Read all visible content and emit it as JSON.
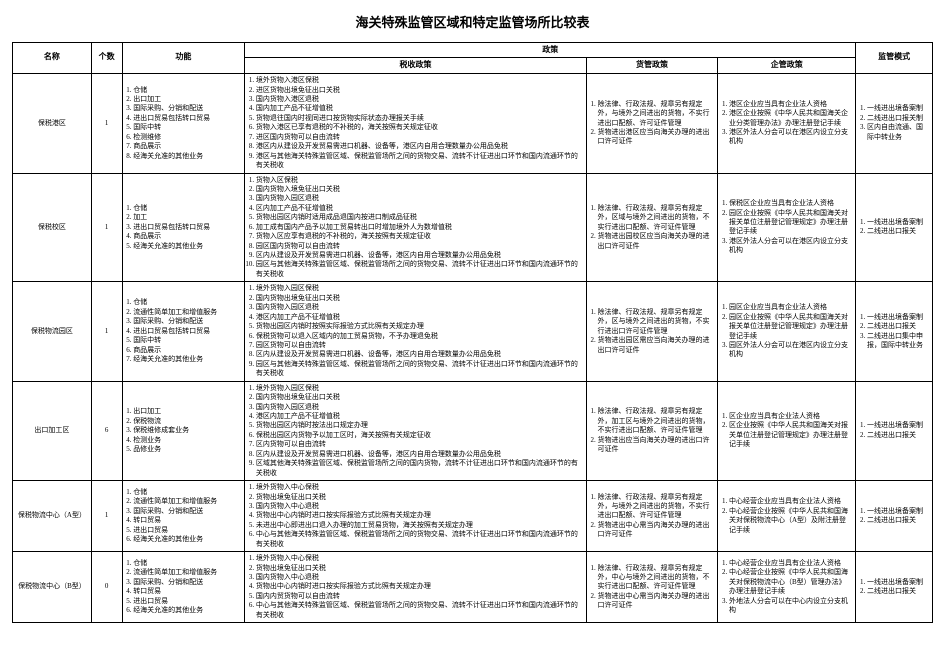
{
  "title": "海关特殊监管区域和特定监管场所比较表",
  "header": {
    "name": "名称",
    "count": "个数",
    "function": "功能",
    "policy": "政策",
    "tax": "税收政策",
    "cargo": "货管政策",
    "corp": "企管政策",
    "mode": "监管模式"
  },
  "rows": [
    {
      "name": "保税港区",
      "count": "1",
      "function": [
        "仓储",
        "出口加工",
        "国际采购、分销和配送",
        "进出口贸易包括转口贸易",
        "国际中转",
        "检测维修",
        "商品展示",
        "经海关允准的其他业务"
      ],
      "tax": [
        "境外货物入港区保税",
        "进区货物出境免征出口关税",
        "国内货物入港区退税",
        "国内加工产品不征增值税",
        "货物退往国内时视同进口按货物实际状态办理报关手续",
        "货物入港区已享有退税的不补税的，海关按照有关规定征收",
        "进区国内货物可以自由流转",
        "港区内从建设及开发贸易需进口机器、设备等，港区内自用合理数量办公用品免税",
        "港区与其他海关特殊监管区域、保税监管场所之间的货物交易、流转不计征进出口环节和国内流通环节的有关税收"
      ],
      "cargo": [
        "除法律、行政法规、规章另有规定外，与境外之间进出的货物，不实行进出口配额、许可证件管理",
        "货物进出港区应当向海关办理的进出口许可证件"
      ],
      "corp": [
        "港区企业应当具有企业法人资格",
        "港区企业按照《中华人民共和国海关企业分类管理办法》办理注册登记手续",
        "港区外法人分会可以在港区内设立分支机构"
      ],
      "mode": [
        "一线进出境备案制",
        "二线进出口报关制",
        "区内自由流通、国际中转业务"
      ]
    },
    {
      "name": "保税校区",
      "count": "1",
      "function": [
        "仓储",
        "加工",
        "进出口贸易包括转口贸易",
        "商品展示",
        "经海关允准的其他业务"
      ],
      "tax": [
        "货物入区保税",
        "国内货物入境免征出口关税",
        "国内货物入园区退税",
        "区内加工产品不征增值税",
        "货物出园区内销时适用成品退国内按进口制成品征税",
        "加工成有国内产品予以加工贸易转出口时增加境外人为数增值税",
        "货物入区应享有退税的不补税的，海关按照有关规定征收",
        "园区国内货物可以自由流转",
        "区内从建设及开发贸易需进口机器、设备等，港区内自用合理数量办公用品免税",
        "园区与其他海关特殊监管区域、保税监管场所之间的货物交易、流转不计征进出口环节和国内流通环节的有关税收"
      ],
      "cargo": [
        "除法律、行政法规、规章另有规定外，区域与境外之间进出的货物，不实行进出口配额、许可证件管理",
        "货物进出园校区应当向海关办理的进出口许可证件"
      ],
      "corp": [
        "保税区企业应当具有企业法人资格",
        "园区企业按照《中华人民共和国海关对报关单位注册登记管理规定》办理注册登记手续",
        "港区外法人分会可以在港区内设立分支机构"
      ],
      "mode": [
        "一线进出境备案制",
        "二线进出口报关"
      ]
    },
    {
      "name": "保税物流园区",
      "count": "1",
      "function": [
        "仓储",
        "流通性简单加工和增值服务",
        "国际采购、分销和配送",
        "进出口贸易包括转口贸易",
        "国际中转",
        "商品展示",
        "经海关允准的其他业务"
      ],
      "tax": [
        "境外货物入园区保税",
        "国内货物出境免征出口关税",
        "国内货物入园区退税",
        "港区内加工产品不征增值税",
        "货物出园区内销时按照实际报验方式比照有关规定办理",
        "保税货物可以退入区域内的加工贸易货物，不予办理退免税",
        "园区货物可以自由流转",
        "区内从建设及开发贸易需进口机器、设备等，港区内自用合理数量办公用品免税",
        "园区与其他海关特殊监管区域、保税监管场所之间的货物交易、流转不计征进出口环节和国内流通环节的有关税收"
      ],
      "cargo": [
        "除法律、行政法规、规章另有规定外，区与境外之间进出的货物，不实行进出口许可证件管理",
        "货物进出园区需应当向海关办理的进出口许可证件"
      ],
      "corp": [
        "园区企业应当具有企业法人资格",
        "园区企业按照《中华人民共和国海关对报关单位注册登记管理规定》办理注册登记手续",
        "园区外法人分会可以在港区内设立分支机构"
      ],
      "mode": [
        "一线进出境备案制",
        "二线进出口报关",
        "二线进出口集中申报，国际中转业务"
      ]
    },
    {
      "name": "出口加工区",
      "count": "6",
      "function": [
        "出口加工",
        "保税物流",
        "保税维修成套业务",
        "检测业务",
        "品修业务"
      ],
      "tax": [
        "境外货物入园区保税",
        "国内货物出境免征出口关税",
        "国内货物入园区退税",
        "港区内加工产品不征增值税",
        "货物出园区内销时按法出口规定办理",
        "保税出园区内货物予以加工区时，海关按照有关规定征收",
        "区内货物可以自由流转",
        "区内从建设及开发贸易需进口机器、设备等，港区内自用合理数量办公用品免税",
        "区域其他海关特殊监管区域、保税监管场所之间的国内货物，流转不计征进出口环节和国内流通环节的有关税收"
      ],
      "cargo": [
        "除法律、行政法规、规章另有规定外，加工区与境外之间进出的货物，不实行进出口配额、许可证件管理",
        "货物进出应当向海关办理的进出口许可证件"
      ],
      "corp": [
        "区企业应当具有企业法人资格",
        "区企业按照《中华人民共和国海关对报关单位注册登记管理规定》办理注册登记手续"
      ],
      "mode": [
        "一线进出境备案制",
        "二线进出口报关"
      ]
    },
    {
      "name": "保税物流中心（A型）",
      "count": "1",
      "function": [
        "仓储",
        "流通性简单加工和增值服务",
        "国际采购、分销和配送",
        "转口贸易",
        "进出口贸易",
        "经海关允准的其他业务"
      ],
      "tax": [
        "境外货物入中心保税",
        "货物出境免征出口关税",
        "国内货物入中心退税",
        "货物出中心内销时进口按实际报验方式比照有关规定办理",
        "未进出中心即进出口退入办理的加工贸易货物，海关按照有关规定办理",
        "中心与其他海关特殊监管区域、保税监管场所之间的货物交易、流转不计征进出口环节和国内流通环节的有关税收"
      ],
      "cargo": [
        "除法律、行政法规、规章另有规定外，与境外之间进出的货物，不实行进出口配额、许可证件管理",
        "货物进出中心需当内海关办理的进出口许可证件"
      ],
      "corp": [
        "中心经营企业应当具有企业法人资格",
        "中心经营企业按照《中华人民共和国海关对保税物流中心（A型）及附注册登记手续"
      ],
      "mode": [
        "一线进出境备案制",
        "二线进出口报关"
      ]
    },
    {
      "name": "保税物流中心（B型）",
      "count": "0",
      "function": [
        "仓储",
        "流通性简单加工和增值服务",
        "国际采购、分销和配送",
        "转口贸易",
        "进出口贸易",
        "经海关允准的其他业务"
      ],
      "tax": [
        "境外货物入中心保税",
        "货物出境免征出口关税",
        "国内货物入中心退税",
        "货物出中心内销时进口按实际报验方式比照有关规定办理",
        "国内内贸货物可以自由流转",
        "中心与其他海关特殊监管区域、保税监管场所之间的货物交易、流转不计征进出口环节和国内流通环节的有关税收"
      ],
      "cargo": [
        "除法律、行政法规、规章另有规定外，中心与境外之间进出的货物，不实行进出口配额、许可证件管理",
        "货物进出中心需当内海关办理的进出口许可证件"
      ],
      "corp": [
        "中心经营企业应当具有企业法人资格",
        "中心经营企业按照《中华人民共和国海关对保税物流中心（B型）管理办法》办理注册登记手续",
        "外地法人分会可以在中心内设立分支机构"
      ],
      "mode": [
        "一线进出境备案制",
        "二线进出口报关"
      ]
    }
  ]
}
